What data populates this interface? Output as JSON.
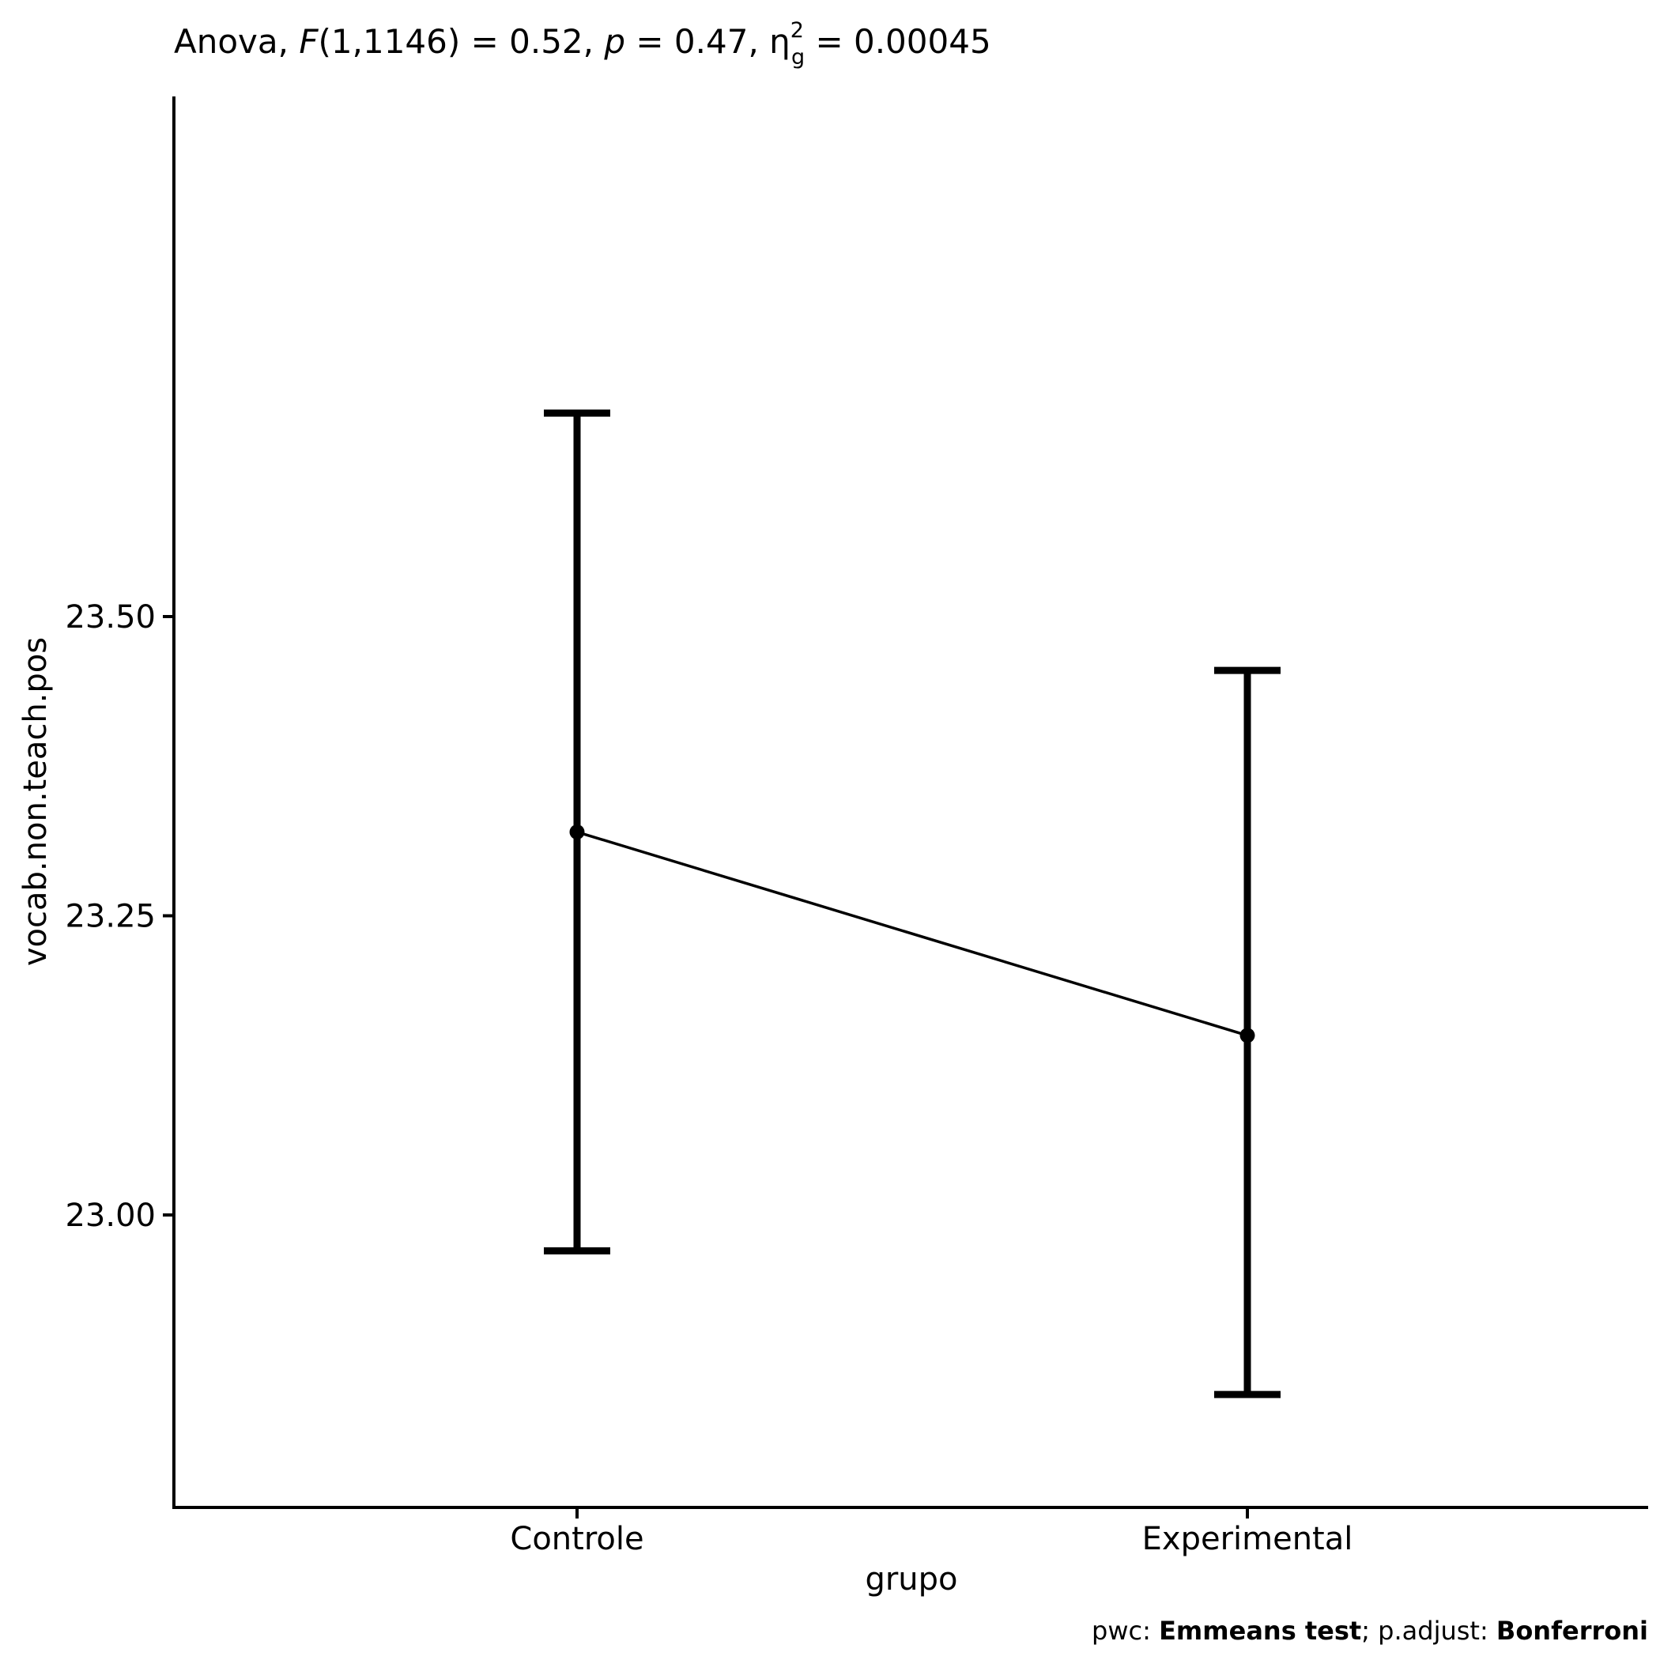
{
  "chart_data": {
    "type": "line",
    "title": {
      "prefix": "Anova, ",
      "f_symbol": "F",
      "f_args": "(1,1146) = 0.52, ",
      "p_symbol": "p",
      "p_value": " = 0.47, ",
      "eta_symbol": "η",
      "eta_sub": "g",
      "eta_sup": "2",
      "eta_value": " = 0.00045"
    },
    "xlabel": "grupo",
    "ylabel": "vocab.non.teach.pos",
    "categories": [
      "Controle",
      "Experimental"
    ],
    "series": [
      {
        "values": [
          23.32,
          23.15
        ],
        "error_low": [
          22.97,
          22.85
        ],
        "error_high": [
          23.67,
          23.455
        ]
      }
    ],
    "ylim": [
      22.81,
      23.71
    ],
    "yticks": [
      23.0,
      23.25,
      23.5
    ],
    "ytick_labels": [
      "23.00",
      "23.25",
      "23.50"
    ],
    "grid": false,
    "caption": {
      "part1": "pwc: ",
      "part2": "Emmeans test",
      "part3": "; p.adjust: ",
      "part4": "Bonferroni"
    }
  }
}
